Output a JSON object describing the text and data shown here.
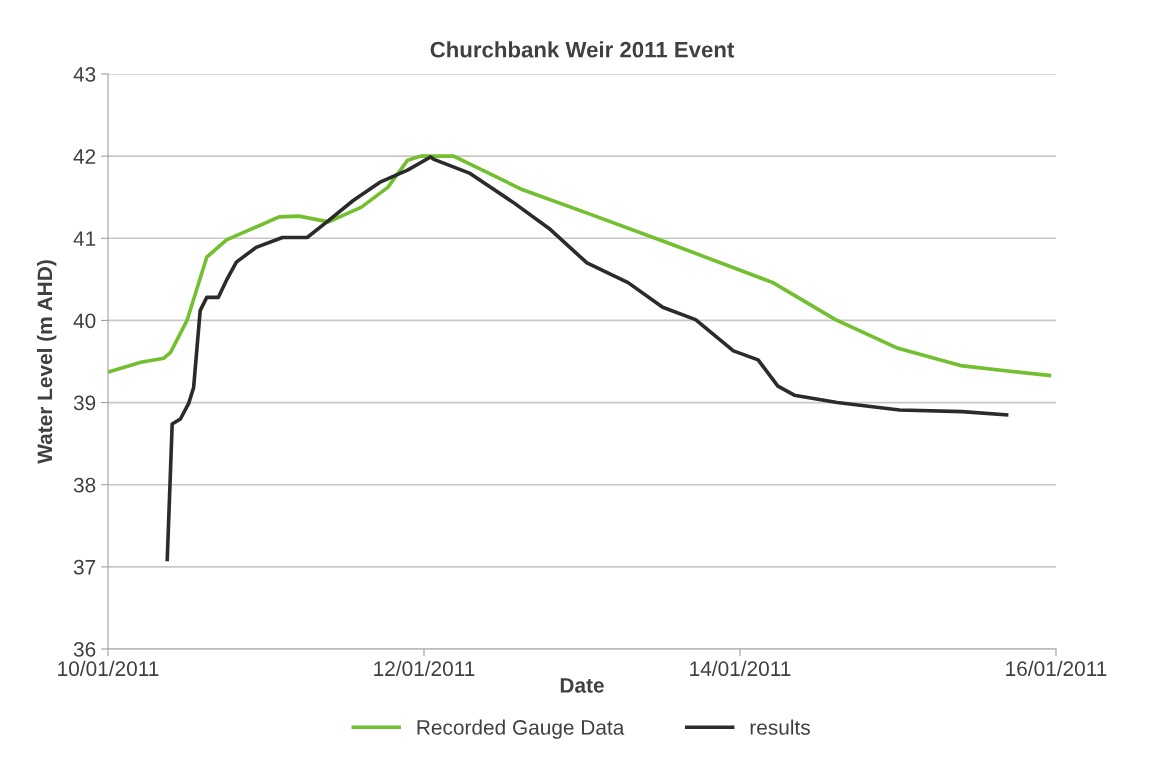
{
  "chart_data": {
    "type": "line",
    "title": "Churchbank Weir 2011 Event",
    "xlabel": "Date",
    "ylabel": "Water Level (m AHD)",
    "xlim": [
      "2011-01-10",
      "2011-01-16"
    ],
    "xticks": [
      {
        "value": "2011-01-10",
        "label": "10/01/2011"
      },
      {
        "value": "2011-01-12",
        "label": "12/01/2011"
      },
      {
        "value": "2011-01-14",
        "label": "14/01/2011"
      },
      {
        "value": "2011-01-16",
        "label": "16/01/2011"
      }
    ],
    "ylim": [
      36,
      43
    ],
    "yticks": [
      36,
      37,
      38,
      39,
      40,
      41,
      42,
      43
    ],
    "grid": "y",
    "legend": "bottom",
    "line_style": "solid",
    "series": [
      {
        "name": "Recorded Gauge Data",
        "color": "#72bf2f",
        "x": [
          "2011-01-10T00:00",
          "2011-01-10T05:00",
          "2011-01-10T08:30",
          "2011-01-10T09:30",
          "2011-01-10T12:00",
          "2011-01-10T15:00",
          "2011-01-10T18:00",
          "2011-01-10T22:00",
          "2011-01-11T02:00",
          "2011-01-11T05:00",
          "2011-01-11T09:30",
          "2011-01-11T14:30",
          "2011-01-11T18:30",
          "2011-01-11T21:30",
          "2011-01-11T23:30",
          "2011-01-12T04:30",
          "2011-01-12T15:00",
          "2011-01-13T01:00",
          "2011-01-13T13:30",
          "2011-01-14T05:00",
          "2011-01-14T14:30",
          "2011-01-15T00:00",
          "2011-01-15T09:30",
          "2011-01-15T16:00",
          "2011-01-15T23:00"
        ],
        "values": [
          39.37,
          39.49,
          39.54,
          39.61,
          40.0,
          40.77,
          40.98,
          41.12,
          41.26,
          41.27,
          41.2,
          41.38,
          41.62,
          41.95,
          42.0,
          42.0,
          41.59,
          41.3,
          40.93,
          40.46,
          40.01,
          39.66,
          39.45,
          39.39,
          39.33
        ]
      },
      {
        "name": "results",
        "color": "#2b2b2b",
        "x": [
          "2011-01-10T09:00",
          "2011-01-10T09:45",
          "2011-01-10T11:00",
          "2011-01-10T12:15",
          "2011-01-10T13:00",
          "2011-01-10T14:00",
          "2011-01-10T15:00",
          "2011-01-10T16:45",
          "2011-01-10T18:00",
          "2011-01-10T19:30",
          "2011-01-10T22:30",
          "2011-01-11T02:30",
          "2011-01-11T06:15",
          "2011-01-11T09:15",
          "2011-01-11T13:15",
          "2011-01-11T17:15",
          "2011-01-11T21:30",
          "2011-01-12T01:00",
          "2011-01-12T01:30",
          "2011-01-12T07:00",
          "2011-01-12T13:30",
          "2011-01-12T19:00",
          "2011-01-13T00:45",
          "2011-01-13T07:00",
          "2011-01-13T12:15",
          "2011-01-13T17:15",
          "2011-01-13T23:00",
          "2011-01-14T02:45",
          "2011-01-14T05:45",
          "2011-01-14T08:15",
          "2011-01-14T14:45",
          "2011-01-15T00:15",
          "2011-01-15T09:45",
          "2011-01-15T16:30"
        ],
        "values": [
          37.09,
          38.74,
          38.8,
          38.99,
          39.18,
          40.12,
          40.28,
          40.28,
          40.49,
          40.71,
          40.89,
          41.01,
          41.01,
          41.2,
          41.46,
          41.68,
          41.83,
          41.99,
          41.96,
          41.79,
          41.44,
          41.12,
          40.7,
          40.46,
          40.16,
          40.01,
          39.63,
          39.52,
          39.2,
          39.09,
          39.0,
          38.91,
          38.89,
          38.85
        ]
      }
    ]
  }
}
